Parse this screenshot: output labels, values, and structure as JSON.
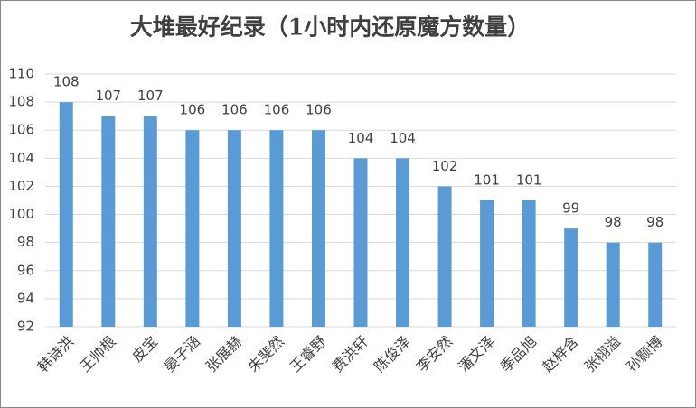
{
  "chart_data": {
    "type": "bar",
    "title": "大堆最好纪录（1小时内还原魔方数量）",
    "categories": [
      "韩诗洪",
      "王帅根",
      "皮宝",
      "晏子涵",
      "张展赫",
      "朱斐然",
      "王睿野",
      "费洪轩",
      "陈俊泽",
      "李安然",
      "潘文泽",
      "季品旭",
      "赵梓含",
      "张栩溢",
      "孙颢博"
    ],
    "values": [
      108,
      107,
      107,
      106,
      106,
      106,
      106,
      104,
      104,
      102,
      101,
      101,
      99,
      98,
      98
    ],
    "color": "#5b9bd5",
    "ylim": [
      92,
      110
    ],
    "yticks": [
      92,
      94,
      96,
      98,
      100,
      102,
      104,
      106,
      108,
      110
    ],
    "grid": true
  }
}
